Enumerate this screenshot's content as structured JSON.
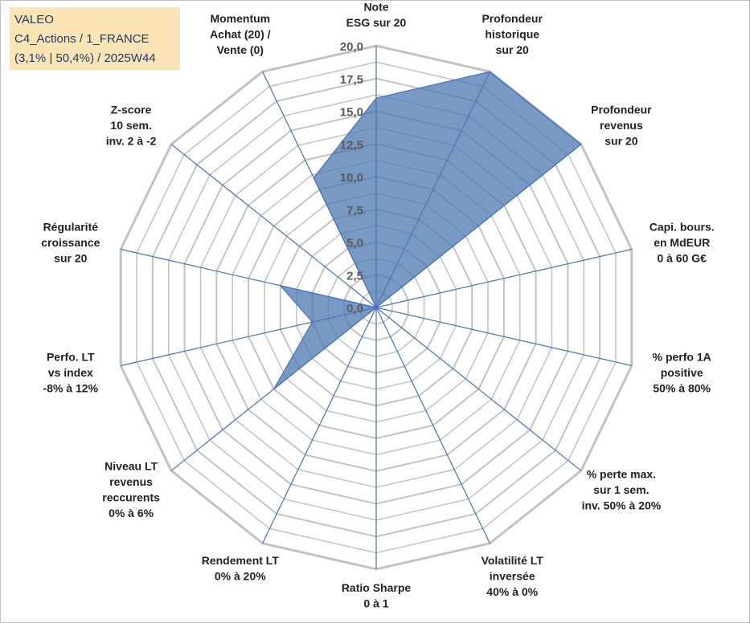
{
  "info_box": {
    "line1": "VALEO",
    "line2": "C4_Actions / 1_FRANCE",
    "line3": "(3,1% | 50,4%) / 2025W44"
  },
  "chart_data": {
    "type": "radar",
    "r_min": 0,
    "r_max": 20,
    "tick_step": 2.5,
    "tick_labels": [
      "0,0",
      "2,5",
      "5,0",
      "7,5",
      "10,0",
      "12,5",
      "15,0",
      "17,5",
      "20,0"
    ],
    "grid_rings": 16,
    "colors": {
      "fill": "#4a77ae",
      "fill_opacity": 0.75,
      "stroke": "#4472c4",
      "grid": "#c2c2c2",
      "spoke": "#4472c4"
    },
    "axes": [
      {
        "label": [
          "Note",
          "ESG sur 20"
        ],
        "value": 16.0
      },
      {
        "label": [
          "Profondeur",
          "historique",
          "sur 20"
        ],
        "value": 20.0
      },
      {
        "label": [
          "Profondeur",
          "revenus",
          "sur 20"
        ],
        "value": 20.0
      },
      {
        "label": [
          "Capi. bours.",
          "en MdEUR",
          "0 à 60 G€"
        ],
        "value": 0.0
      },
      {
        "label": [
          "% perfo 1A",
          "positive",
          "50% à 80%"
        ],
        "value": 0.0
      },
      {
        "label": [
          "% perte max.",
          "sur 1 sem.",
          "inv. 50% à 20%"
        ],
        "value": 0.0
      },
      {
        "label": [
          "Volatilité LT",
          "inversée",
          "40% à 0%"
        ],
        "value": 0.0
      },
      {
        "label": [
          "Ratio Sharpe",
          "0 à 1"
        ],
        "value": 0.0
      },
      {
        "label": [
          "Rendement LT",
          "0% à 20%"
        ],
        "value": 0.0
      },
      {
        "label": [
          "Niveau LT",
          "revenus",
          "reccurents",
          "0% à 6%"
        ],
        "value": 10.0
      },
      {
        "label": [
          "Perfo. LT",
          "vs index",
          "-8% à 12%"
        ],
        "value": 5.0
      },
      {
        "label": [
          "Régularité",
          "croissance",
          "sur 20"
        ],
        "value": 7.5
      },
      {
        "label": [
          "Z-score",
          "10 sem.",
          "inv. 2 à -2"
        ],
        "value": 0.0
      },
      {
        "label": [
          "Momentum",
          "Achat (20) /",
          "Vente (0)"
        ],
        "value": 11.0
      }
    ]
  }
}
